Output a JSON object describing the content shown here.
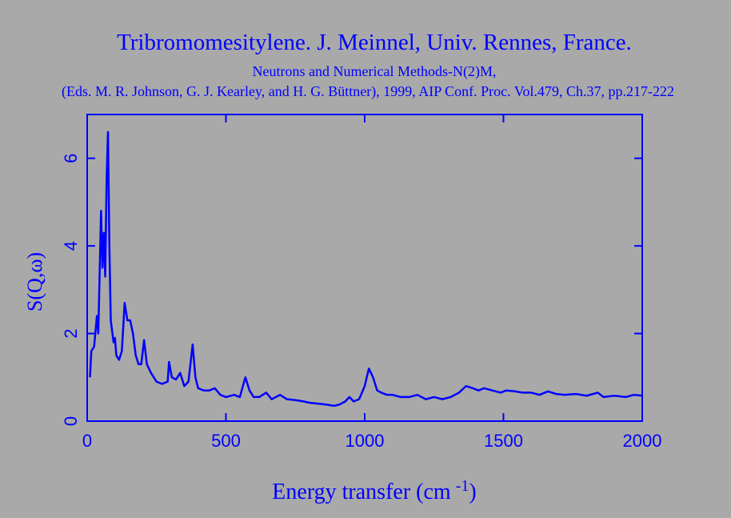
{
  "chart_data": {
    "type": "line",
    "title": "Tribromomesitylene. J. Meinnel, Univ. Rennes, France.",
    "subtitle": [
      "Neutrons and Numerical Methods-N(2)M,",
      "(Eds. M. R. Johnson, G. J. Kearley, and H. G. Büttner), 1999, AIP Conf. Proc. Vol.479, Ch.37, pp.217-222"
    ],
    "xlabel": {
      "text": "Energy transfer (cm",
      "superscript": "-1",
      "suffix": ")"
    },
    "ylabel": "S(Q,ω)",
    "xlim": [
      0,
      2000
    ],
    "xticks": [
      0,
      500,
      1000,
      1500,
      2000
    ],
    "ylim": [
      0,
      7
    ],
    "yticks": [
      0,
      2,
      4,
      6
    ],
    "series": [
      {
        "color": "#0000ff",
        "x": [
          10,
          15,
          25,
          35,
          40,
          50,
          55,
          60,
          65,
          70,
          75,
          80,
          85,
          95,
          100,
          105,
          115,
          125,
          135,
          145,
          155,
          165,
          175,
          185,
          195,
          205,
          215,
          230,
          250,
          270,
          290,
          295,
          305,
          320,
          335,
          350,
          365,
          380,
          390,
          400,
          420,
          440,
          460,
          480,
          500,
          530,
          550,
          570,
          585,
          600,
          620,
          645,
          665,
          695,
          720,
          750,
          780,
          800,
          830,
          860,
          890,
          910,
          930,
          945,
          960,
          980,
          1000,
          1015,
          1030,
          1045,
          1060,
          1080,
          1100,
          1130,
          1160,
          1190,
          1220,
          1250,
          1280,
          1310,
          1340,
          1365,
          1390,
          1410,
          1430,
          1460,
          1490,
          1510,
          1540,
          1570,
          1600,
          1630,
          1660,
          1690,
          1720,
          1760,
          1800,
          1840,
          1860,
          1900,
          1940,
          1970,
          2000
        ],
        "values": [
          1.0,
          1.6,
          1.7,
          2.4,
          2.0,
          4.8,
          3.5,
          4.3,
          3.3,
          5.5,
          6.6,
          4.0,
          2.3,
          1.8,
          1.9,
          1.5,
          1.4,
          1.6,
          2.7,
          2.3,
          2.3,
          2.0,
          1.5,
          1.3,
          1.3,
          1.85,
          1.3,
          1.1,
          0.9,
          0.85,
          0.9,
          1.35,
          1.0,
          0.95,
          1.1,
          0.8,
          0.9,
          1.75,
          1.0,
          0.75,
          0.7,
          0.7,
          0.75,
          0.6,
          0.55,
          0.6,
          0.55,
          1.0,
          0.7,
          0.55,
          0.55,
          0.65,
          0.5,
          0.6,
          0.5,
          0.48,
          0.45,
          0.42,
          0.4,
          0.38,
          0.35,
          0.38,
          0.45,
          0.55,
          0.45,
          0.5,
          0.8,
          1.2,
          1.0,
          0.7,
          0.65,
          0.6,
          0.6,
          0.55,
          0.55,
          0.6,
          0.5,
          0.55,
          0.5,
          0.55,
          0.65,
          0.8,
          0.75,
          0.7,
          0.75,
          0.7,
          0.65,
          0.7,
          0.68,
          0.65,
          0.65,
          0.6,
          0.68,
          0.62,
          0.6,
          0.62,
          0.58,
          0.65,
          0.55,
          0.58,
          0.55,
          0.6,
          0.58
        ]
      }
    ]
  }
}
